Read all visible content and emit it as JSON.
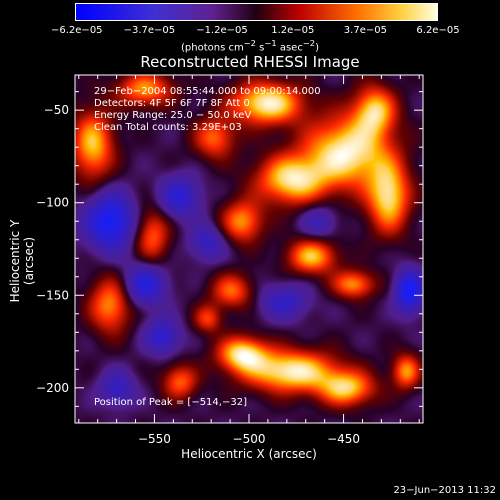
{
  "colorbar": {
    "ticks": [
      "−6.2e−05",
      "−3.7e−05",
      "−1.2e−05",
      "1.2e−05",
      "3.7e−05",
      "6.2e−05"
    ],
    "unit_html": "(photons cm<sup>−2</sup> s<sup>−1</sup> asec<sup>−2</sup>)",
    "unit": "(photons cm−2 s−1 asec−2)"
  },
  "title": "Reconstructed RHESSI Image",
  "info": {
    "line1": "29−Feb−2004 08:55:44.000 to 09:00:14.000",
    "line2": "Detectors: 4F 5F 6F 7F 8F  Att 0",
    "line3": "Energy Range: 25.0 − 50.0 keV",
    "line4": "Clean     Total counts: 3.29E+03"
  },
  "peak": "Position of Peak = [−514,−32]",
  "footer": "23−Jun−2013 11:32",
  "chart_data": {
    "type": "heatmap",
    "title": "Reconstructed RHESSI Image",
    "xlabel": "Heliocentric X (arcsec)",
    "ylabel": "Heliocentric Y (arcsec)",
    "xlim": [
      -592,
      -408
    ],
    "ylim": [
      -219,
      -31
    ],
    "x_ticks": [
      -550,
      -500,
      -450
    ],
    "y_ticks": [
      -50,
      -100,
      -150,
      -200
    ],
    "x_tick_labels": [
      "−550",
      "−500",
      "−450"
    ],
    "y_tick_labels": [
      "−50",
      "−100",
      "−150",
      "−200"
    ],
    "value_range": [
      -6.2e-05,
      6.2e-05
    ],
    "peak_position": [
      -514,
      -32
    ],
    "colors": {
      "negative": "#0000ff",
      "mid": "#000000",
      "positive": "#ffffff",
      "hot": "#ff8000"
    }
  }
}
